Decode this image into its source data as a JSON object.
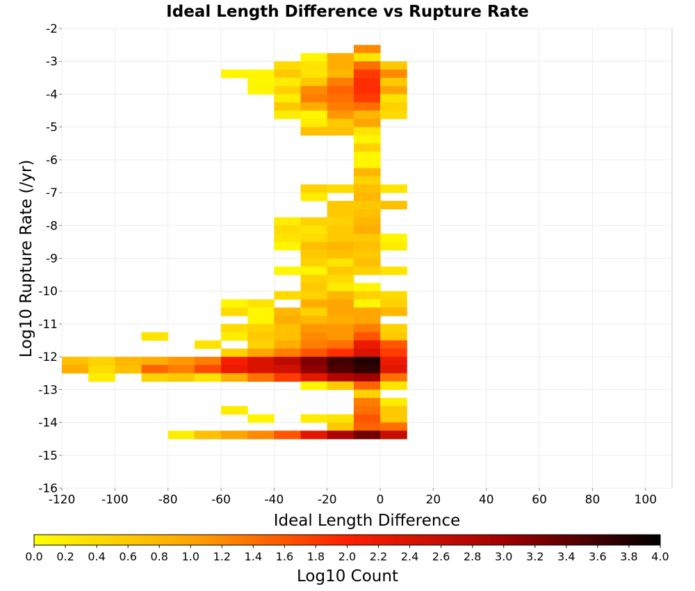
{
  "chart_data": {
    "type": "heatmap",
    "title": "Ideal Length Difference vs Rupture Rate",
    "xlabel": "Ideal Length Difference",
    "ylabel": "Log10 Rupture Rate (/yr)",
    "colorbar_label": "Log10 Count",
    "xlim": [
      -120,
      110
    ],
    "ylim": [
      -16,
      -2
    ],
    "x_ticks": [
      "-120",
      "-100",
      "-80",
      "-60",
      "-40",
      "-20",
      "0",
      "20",
      "40",
      "60",
      "80",
      "100"
    ],
    "y_ticks": [
      "-2",
      "-3",
      "-4",
      "-5",
      "-6",
      "-7",
      "-8",
      "-9",
      "-10",
      "-11",
      "-12",
      "-13",
      "-14",
      "-15",
      "-16"
    ],
    "colorbar_ticks": [
      "0.0",
      "0.2",
      "0.4",
      "0.6",
      "0.8",
      "1.0",
      "1.2",
      "1.4",
      "1.6",
      "1.8",
      "2.0",
      "2.2",
      "2.4",
      "2.6",
      "2.8",
      "3.0",
      "3.2",
      "3.4",
      "3.6",
      "3.8",
      "4.0"
    ],
    "colorbar_range": [
      0,
      4
    ],
    "x_bin_width": 10,
    "y_bin_height": 0.25,
    "grid": true,
    "colormap": [
      "#ffff00",
      "#ffa500",
      "#ff2000",
      "#a00000",
      "#000000"
    ],
    "cells": [
      [
        -10,
        -2.5,
        1.2
      ],
      [
        -30,
        -2.75,
        0.1
      ],
      [
        -20,
        -2.75,
        0.9
      ],
      [
        -10,
        -2.75,
        0.3
      ],
      [
        -40,
        -3,
        0.4
      ],
      [
        -30,
        -3,
        0.3
      ],
      [
        -20,
        -3,
        0.9
      ],
      [
        -10,
        -3,
        1.4
      ],
      [
        0,
        -3,
        0.6
      ],
      [
        -60,
        -3.25,
        0.1
      ],
      [
        -50,
        -3.25,
        0.1
      ],
      [
        -40,
        -3.25,
        0.6
      ],
      [
        -30,
        -3.25,
        0.3
      ],
      [
        -20,
        -3.25,
        0.8
      ],
      [
        -10,
        -3.25,
        1.8
      ],
      [
        0,
        -3.25,
        1.2
      ],
      [
        -50,
        -3.5,
        0.1
      ],
      [
        -40,
        -3.5,
        0.2
      ],
      [
        -30,
        -3.5,
        0.6
      ],
      [
        -20,
        -3.5,
        1.3
      ],
      [
        -10,
        -3.5,
        1.9
      ],
      [
        0,
        -3.5,
        0.6
      ],
      [
        -50,
        -3.75,
        0.1
      ],
      [
        -40,
        -3.75,
        0.5
      ],
      [
        -30,
        -3.75,
        1.2
      ],
      [
        -20,
        -3.75,
        1.5
      ],
      [
        -10,
        -3.75,
        1.9
      ],
      [
        0,
        -3.75,
        1.0
      ],
      [
        -40,
        -4,
        0.2
      ],
      [
        -30,
        -4,
        1.3
      ],
      [
        -20,
        -4,
        1.4
      ],
      [
        -10,
        -4,
        1.8
      ],
      [
        0,
        -4,
        0.3
      ],
      [
        -40,
        -4.25,
        0.6
      ],
      [
        -30,
        -4.25,
        0.9
      ],
      [
        -20,
        -4.25,
        1.3
      ],
      [
        -10,
        -4.25,
        1.4
      ],
      [
        0,
        -4.25,
        0.5
      ],
      [
        -40,
        -4.5,
        0.2
      ],
      [
        -30,
        -4.5,
        0.1
      ],
      [
        -20,
        -4.5,
        1.1
      ],
      [
        -10,
        -4.5,
        0.8
      ],
      [
        0,
        -4.5,
        0.4
      ],
      [
        -30,
        -4.75,
        0.2
      ],
      [
        -20,
        -4.75,
        0.6
      ],
      [
        -10,
        -4.75,
        1.0
      ],
      [
        -30,
        -5,
        0.7
      ],
      [
        -20,
        -5,
        0.7
      ],
      [
        -10,
        -5,
        0.3
      ],
      [
        -10,
        -5.25,
        0.1
      ],
      [
        -10,
        -5.5,
        0.5
      ],
      [
        -10,
        -5.75,
        0.1
      ],
      [
        -10,
        -6,
        0.1
      ],
      [
        -10,
        -6.25,
        0.8
      ],
      [
        -10,
        -6.5,
        0.5
      ],
      [
        -30,
        -6.75,
        0.5
      ],
      [
        -20,
        -6.75,
        0.4
      ],
      [
        -10,
        -6.75,
        0.7
      ],
      [
        0,
        -6.75,
        0.3
      ],
      [
        -30,
        -7,
        0.2
      ],
      [
        -10,
        -7,
        0.8
      ],
      [
        -20,
        -7.25,
        0.6
      ],
      [
        -10,
        -7.25,
        0.6
      ],
      [
        0,
        -7.25,
        0.7
      ],
      [
        -20,
        -7.5,
        0.6
      ],
      [
        -10,
        -7.5,
        0.7
      ],
      [
        -40,
        -7.75,
        0.2
      ],
      [
        -30,
        -7.75,
        0.5
      ],
      [
        -20,
        -7.75,
        0.5
      ],
      [
        -10,
        -7.75,
        0.8
      ],
      [
        -40,
        -8,
        0.4
      ],
      [
        -30,
        -8,
        0.3
      ],
      [
        -20,
        -8,
        0.6
      ],
      [
        -10,
        -8,
        0.9
      ],
      [
        -40,
        -8.25,
        0.3
      ],
      [
        -30,
        -8.25,
        0.4
      ],
      [
        -20,
        -8.25,
        0.6
      ],
      [
        -10,
        -8.25,
        0.6
      ],
      [
        0,
        -8.25,
        0.1
      ],
      [
        -40,
        -8.5,
        0.1
      ],
      [
        -30,
        -8.5,
        0.7
      ],
      [
        -20,
        -8.5,
        0.8
      ],
      [
        -10,
        -8.5,
        0.7
      ],
      [
        0,
        -8.5,
        0.2
      ],
      [
        -30,
        -8.75,
        0.6
      ],
      [
        -20,
        -8.75,
        0.7
      ],
      [
        -10,
        -8.75,
        0.6
      ],
      [
        -30,
        -9,
        0.5
      ],
      [
        -20,
        -9,
        0.3
      ],
      [
        -10,
        -9,
        0.7
      ],
      [
        -40,
        -9.25,
        0.1
      ],
      [
        -30,
        -9.25,
        0.1
      ],
      [
        -20,
        -9.25,
        0.6
      ],
      [
        -10,
        -9.25,
        0.5
      ],
      [
        0,
        -9.25,
        0.3
      ],
      [
        -30,
        -9.5,
        0.5
      ],
      [
        -20,
        -9.5,
        0.4
      ],
      [
        -30,
        -9.75,
        0.6
      ],
      [
        -20,
        -9.75,
        0.2
      ],
      [
        -10,
        -9.75,
        0.1
      ],
      [
        -40,
        -10,
        0.4
      ],
      [
        -30,
        -10,
        0.5
      ],
      [
        -20,
        -10,
        0.8
      ],
      [
        -10,
        -10,
        0.5
      ],
      [
        0,
        -10,
        0.4
      ],
      [
        -60,
        -10.25,
        0.1
      ],
      [
        -50,
        -10.25,
        0.3
      ],
      [
        -30,
        -10.25,
        0.9
      ],
      [
        -20,
        -10.25,
        1.0
      ],
      [
        -10,
        -10.25,
        0.1
      ],
      [
        0,
        -10.25,
        0.5
      ],
      [
        -60,
        -10.5,
        0.4
      ],
      [
        -50,
        -10.5,
        0.1
      ],
      [
        -40,
        -10.5,
        0.8
      ],
      [
        -30,
        -10.5,
        0.5
      ],
      [
        -20,
        -10.5,
        1.0
      ],
      [
        -10,
        -10.5,
        1.0
      ],
      [
        0,
        -10.5,
        0.8
      ],
      [
        -50,
        -10.75,
        0.1
      ],
      [
        -40,
        -10.75,
        0.9
      ],
      [
        -30,
        -10.75,
        0.8
      ],
      [
        -20,
        -10.75,
        0.9
      ],
      [
        -10,
        -10.75,
        1.0
      ],
      [
        -60,
        -11,
        0.4
      ],
      [
        -50,
        -11,
        0.5
      ],
      [
        -40,
        -11,
        0.7
      ],
      [
        -30,
        -11,
        1.1
      ],
      [
        -20,
        -11,
        1.1
      ],
      [
        -10,
        -11,
        1.3
      ],
      [
        0,
        -11,
        0.5
      ],
      [
        -90,
        -11.25,
        0.3
      ],
      [
        -60,
        -11.25,
        0.2
      ],
      [
        -50,
        -11.25,
        0.6
      ],
      [
        -40,
        -11.25,
        0.7
      ],
      [
        -30,
        -11.25,
        1.2
      ],
      [
        -20,
        -11.25,
        1.1
      ],
      [
        -10,
        -11.25,
        1.6
      ],
      [
        0,
        -11.25,
        0.6
      ],
      [
        -70,
        -11.5,
        0.3
      ],
      [
        -50,
        -11.5,
        0.5
      ],
      [
        -40,
        -11.5,
        0.9
      ],
      [
        -30,
        -11.5,
        1.3
      ],
      [
        -20,
        -11.5,
        1.4
      ],
      [
        -10,
        -11.5,
        2.2
      ],
      [
        0,
        -11.5,
        1.6
      ],
      [
        -60,
        -11.75,
        0.5
      ],
      [
        -50,
        -11.75,
        1.0
      ],
      [
        -40,
        -11.75,
        1.3
      ],
      [
        -30,
        -11.75,
        1.6
      ],
      [
        -20,
        -11.75,
        1.9
      ],
      [
        -10,
        -11.75,
        2.4
      ],
      [
        0,
        -11.75,
        1.8
      ],
      [
        -120,
        -12,
        0.7
      ],
      [
        -110,
        -12,
        0.5
      ],
      [
        -100,
        -12,
        0.8
      ],
      [
        -90,
        -12,
        0.9
      ],
      [
        -80,
        -12,
        1.1
      ],
      [
        -70,
        -12,
        1.3
      ],
      [
        -60,
        -12,
        2.1
      ],
      [
        -50,
        -12,
        2.4
      ],
      [
        -40,
        -12,
        2.7
      ],
      [
        -30,
        -12,
        3.2
      ],
      [
        -20,
        -12,
        3.6
      ],
      [
        -10,
        -12,
        3.8
      ],
      [
        0,
        -12,
        2.2
      ],
      [
        -120,
        -12.25,
        0.9
      ],
      [
        -110,
        -12.25,
        0.4
      ],
      [
        -100,
        -12.25,
        0.7
      ],
      [
        -90,
        -12.25,
        1.5
      ],
      [
        -80,
        -12.25,
        1.3
      ],
      [
        -70,
        -12.25,
        1.7
      ],
      [
        -60,
        -12.25,
        2.2
      ],
      [
        -50,
        -12.25,
        2.4
      ],
      [
        -40,
        -12.25,
        2.5
      ],
      [
        -30,
        -12.25,
        3.1
      ],
      [
        -20,
        -12.25,
        3.5
      ],
      [
        -10,
        -12.25,
        3.7
      ],
      [
        0,
        -12.25,
        2.3
      ],
      [
        -110,
        -12.5,
        0.2
      ],
      [
        -90,
        -12.5,
        0.5
      ],
      [
        -80,
        -12.5,
        0.6
      ],
      [
        -70,
        -12.5,
        0.3
      ],
      [
        -60,
        -12.5,
        0.9
      ],
      [
        -50,
        -12.5,
        1.4
      ],
      [
        -40,
        -12.5,
        1.8
      ],
      [
        -30,
        -12.5,
        2.3
      ],
      [
        -20,
        -12.5,
        2.8
      ],
      [
        -10,
        -12.5,
        3.0
      ],
      [
        0,
        -12.5,
        1.4
      ],
      [
        -30,
        -12.75,
        0.1
      ],
      [
        -20,
        -12.75,
        0.6
      ],
      [
        -10,
        -12.75,
        1.5
      ],
      [
        0,
        -12.75,
        0.3
      ],
      [
        -10,
        -13,
        0.5
      ],
      [
        -10,
        -13.25,
        1.3
      ],
      [
        0,
        -13.25,
        0.2
      ],
      [
        -60,
        -13.5,
        0.2
      ],
      [
        -10,
        -13.5,
        1.4
      ],
      [
        0,
        -13.5,
        0.6
      ],
      [
        -50,
        -13.75,
        0.1
      ],
      [
        -30,
        -13.75,
        0.2
      ],
      [
        -20,
        -13.75,
        0.3
      ],
      [
        -10,
        -13.75,
        1.6
      ],
      [
        0,
        -13.75,
        0.6
      ],
      [
        -20,
        -14,
        0.6
      ],
      [
        -10,
        -14,
        1.5
      ],
      [
        0,
        -14,
        1.4
      ],
      [
        -80,
        -14.25,
        0.2
      ],
      [
        -70,
        -14.25,
        0.7
      ],
      [
        -60,
        -14.25,
        1.0
      ],
      [
        -50,
        -14.25,
        1.2
      ],
      [
        -40,
        -14.25,
        1.6
      ],
      [
        -30,
        -14.25,
        2.3
      ],
      [
        -20,
        -14.25,
        2.9
      ],
      [
        -10,
        -14.25,
        3.3
      ],
      [
        0,
        -14.25,
        2.6
      ]
    ]
  }
}
